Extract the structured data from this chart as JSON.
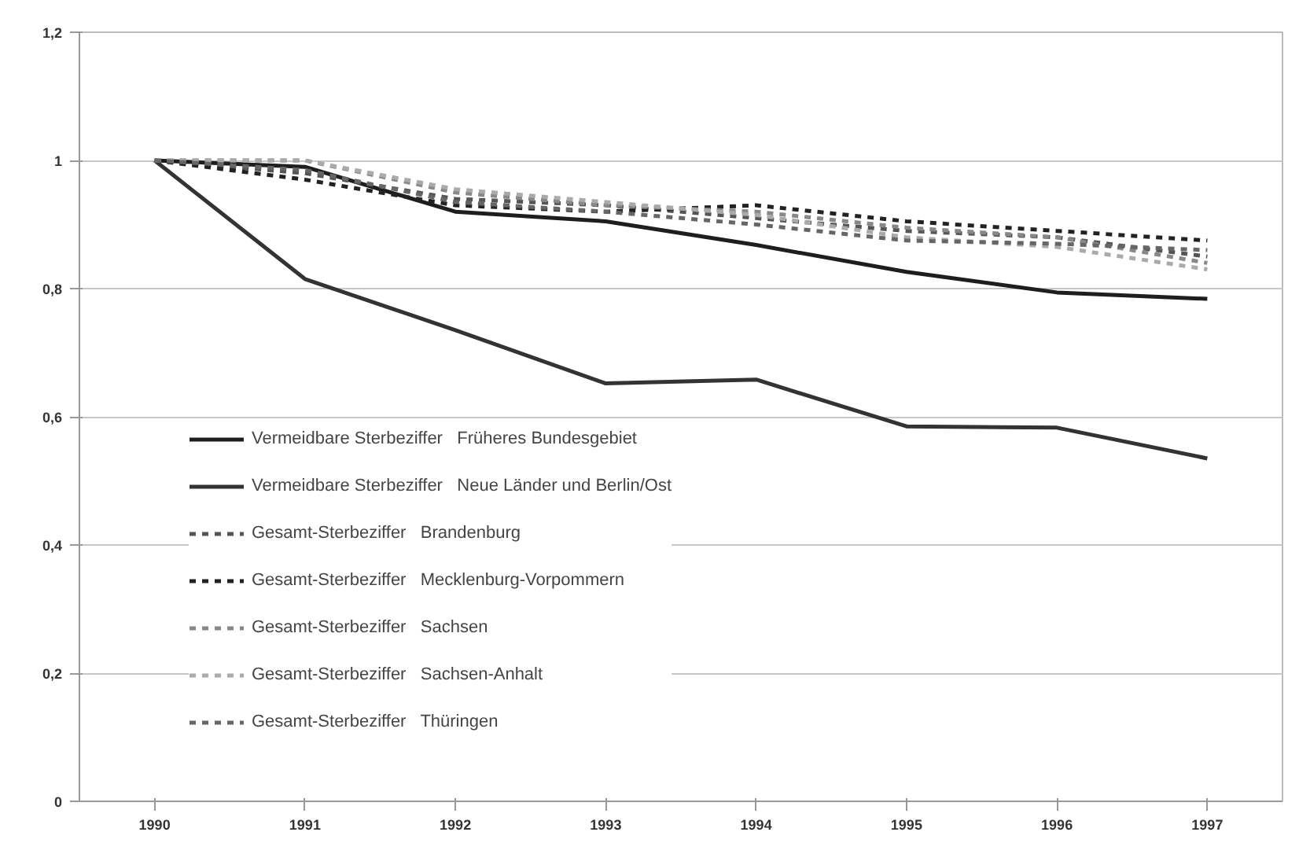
{
  "chart_data": {
    "type": "line",
    "x": [
      1990,
      1991,
      1992,
      1993,
      1994,
      1995,
      1996,
      1997
    ],
    "xlim": [
      1989.5,
      1997.5
    ],
    "xticks": [
      1990,
      1991,
      1992,
      1993,
      1994,
      1995,
      1996,
      1997
    ],
    "ylim": [
      0,
      1.2
    ],
    "yticks": [
      0,
      {
        "value": 0.2,
        "label": "0,2"
      },
      {
        "value": 0.4,
        "label": "0,4"
      },
      {
        "value": 0.6,
        "label": "0,6"
      },
      {
        "value": 0.8,
        "label": "0,8"
      },
      1,
      {
        "value": 1.2,
        "label": "1,2"
      }
    ],
    "grid": "y",
    "legend": "bottom left",
    "series": [
      {
        "name": "Vermeidbare Sterbeziffer   Früheres Bundesgebiet",
        "color": "#1e1e1e",
        "line_style": "solid",
        "values": [
          1,
          0.99,
          0.92,
          0.905,
          0.868,
          0.826,
          0.794,
          0.784
        ]
      },
      {
        "name": "Vermeidbare Sterbeziffer   Neue Länder und Berlin/Ost",
        "color": "#333333",
        "line_style": "solid",
        "values": [
          1,
          0.815,
          0.735,
          0.652,
          0.658,
          0.585,
          0.583,
          0.535
        ]
      },
      {
        "name": "Gesamt-Sterbeziffer   Brandenburg",
        "color": "#555555",
        "line_style": "dashed",
        "values": [
          1,
          0.98,
          0.94,
          0.93,
          0.91,
          0.89,
          0.88,
          0.85
        ]
      },
      {
        "name": "Gesamt-Sterbeziffer   Mecklenburg-Vorpommern",
        "color": "#222222",
        "line_style": "dashed",
        "values": [
          1,
          0.97,
          0.93,
          0.92,
          0.93,
          0.905,
          0.89,
          0.875
        ]
      },
      {
        "name": "Gesamt-Sterbeziffer   Sachsen",
        "color": "#888888",
        "line_style": "dashed",
        "values": [
          1,
          1.0,
          0.95,
          0.93,
          0.92,
          0.895,
          0.88,
          0.84
        ]
      },
      {
        "name": "Gesamt-Sterbeziffer   Sachsen-Anhalt",
        "color": "#aaaaaa",
        "line_style": "dashed",
        "values": [
          1,
          1.0,
          0.955,
          0.935,
          0.915,
          0.88,
          0.865,
          0.83
        ]
      },
      {
        "name": "Gesamt-Sterbeziffer   Thüringen",
        "color": "#666666",
        "line_style": "dashed",
        "values": [
          1,
          0.985,
          0.935,
          0.92,
          0.9,
          0.875,
          0.87,
          0.86
        ]
      }
    ]
  }
}
